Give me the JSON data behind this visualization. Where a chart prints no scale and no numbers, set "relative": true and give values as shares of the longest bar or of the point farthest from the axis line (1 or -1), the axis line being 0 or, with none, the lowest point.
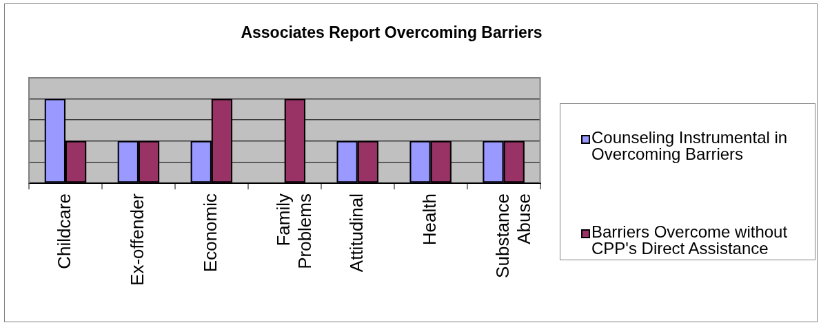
{
  "chart_data": {
    "type": "bar",
    "title": "Associates Report Overcoming Barriers",
    "categories": [
      "Childcare",
      "Ex-offender",
      "Economic",
      "Family Problems",
      "Attitudinal",
      "Health",
      "Substance Abuse"
    ],
    "series": [
      {
        "name": "Counseling Instrumental in Overcoming Barriers",
        "color": "#9999ff",
        "values": [
          1,
          0.5,
          0.5,
          0,
          0.5,
          0.5,
          0.5
        ]
      },
      {
        "name": "Barriers Overcome without CPP's Direct Assistance",
        "color": "#993366",
        "values": [
          0.5,
          0.5,
          1,
          1,
          0.5,
          0.5,
          0.5
        ]
      }
    ],
    "relative": true,
    "grid": "y",
    "legend": "right"
  }
}
